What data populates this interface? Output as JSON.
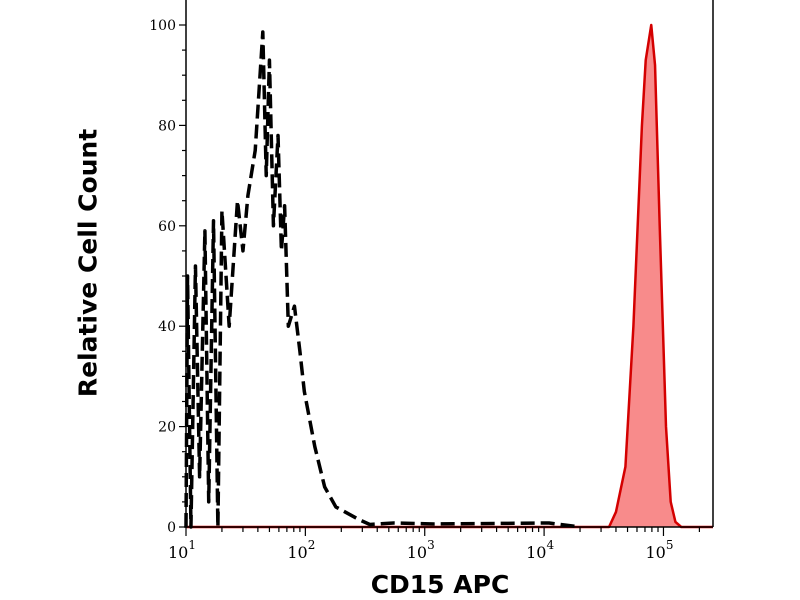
{
  "chart_data": {
    "type": "line",
    "title": "",
    "xlabel": "CD15 APC",
    "ylabel": "Relative Cell Count",
    "x_scale": "log",
    "xlim": [
      10,
      260000
    ],
    "ylim": [
      0,
      100
    ],
    "x_ticks": [
      {
        "value": 10,
        "base": "10",
        "exp": "1"
      },
      {
        "value": 100,
        "base": "10",
        "exp": "2"
      },
      {
        "value": 1000,
        "base": "10",
        "exp": "3"
      },
      {
        "value": 10000,
        "base": "10",
        "exp": "4"
      },
      {
        "value": 100000,
        "base": "10",
        "exp": "5"
      }
    ],
    "y_ticks": [
      "0",
      "20",
      "40",
      "60",
      "80",
      "100"
    ],
    "grid": false,
    "legend": "none",
    "series": [
      {
        "style": "dashed",
        "color": "#000000",
        "fill": "none",
        "points": [
          [
            10,
            0
          ],
          [
            10.3,
            50
          ],
          [
            11,
            0
          ],
          [
            12,
            52
          ],
          [
            13,
            10
          ],
          [
            14.4,
            59
          ],
          [
            15.5,
            5
          ],
          [
            17,
            61
          ],
          [
            18.5,
            0
          ],
          [
            20,
            63
          ],
          [
            23,
            40
          ],
          [
            27,
            65
          ],
          [
            30,
            55
          ],
          [
            33,
            66
          ],
          [
            38,
            75
          ],
          [
            44,
            98.6
          ],
          [
            47,
            70
          ],
          [
            50,
            93
          ],
          [
            54,
            60
          ],
          [
            59,
            78
          ],
          [
            63,
            55
          ],
          [
            67,
            64
          ],
          [
            72,
            40
          ],
          [
            81,
            44
          ],
          [
            90,
            35
          ],
          [
            98,
            27
          ],
          [
            120,
            16
          ],
          [
            145,
            8
          ],
          [
            180,
            4
          ],
          [
            215,
            3
          ],
          [
            280,
            1.5
          ],
          [
            347,
            0.5
          ],
          [
            550,
            0.8
          ],
          [
            1200,
            0.6
          ],
          [
            11000,
            0.8
          ],
          [
            20000,
            0
          ]
        ]
      },
      {
        "style": "solid",
        "color": "#d40000",
        "fill": "#f88b8b",
        "points": [
          [
            10,
            0
          ],
          [
            35000,
            0
          ],
          [
            40000,
            3
          ],
          [
            48000,
            12
          ],
          [
            56000,
            40
          ],
          [
            66000,
            80
          ],
          [
            71000,
            93
          ],
          [
            79000,
            100
          ],
          [
            85000,
            92
          ],
          [
            93000,
            60
          ],
          [
            105000,
            20
          ],
          [
            115000,
            5
          ],
          [
            126000,
            1
          ],
          [
            141000,
            0
          ],
          [
            260000,
            0
          ]
        ]
      }
    ]
  }
}
